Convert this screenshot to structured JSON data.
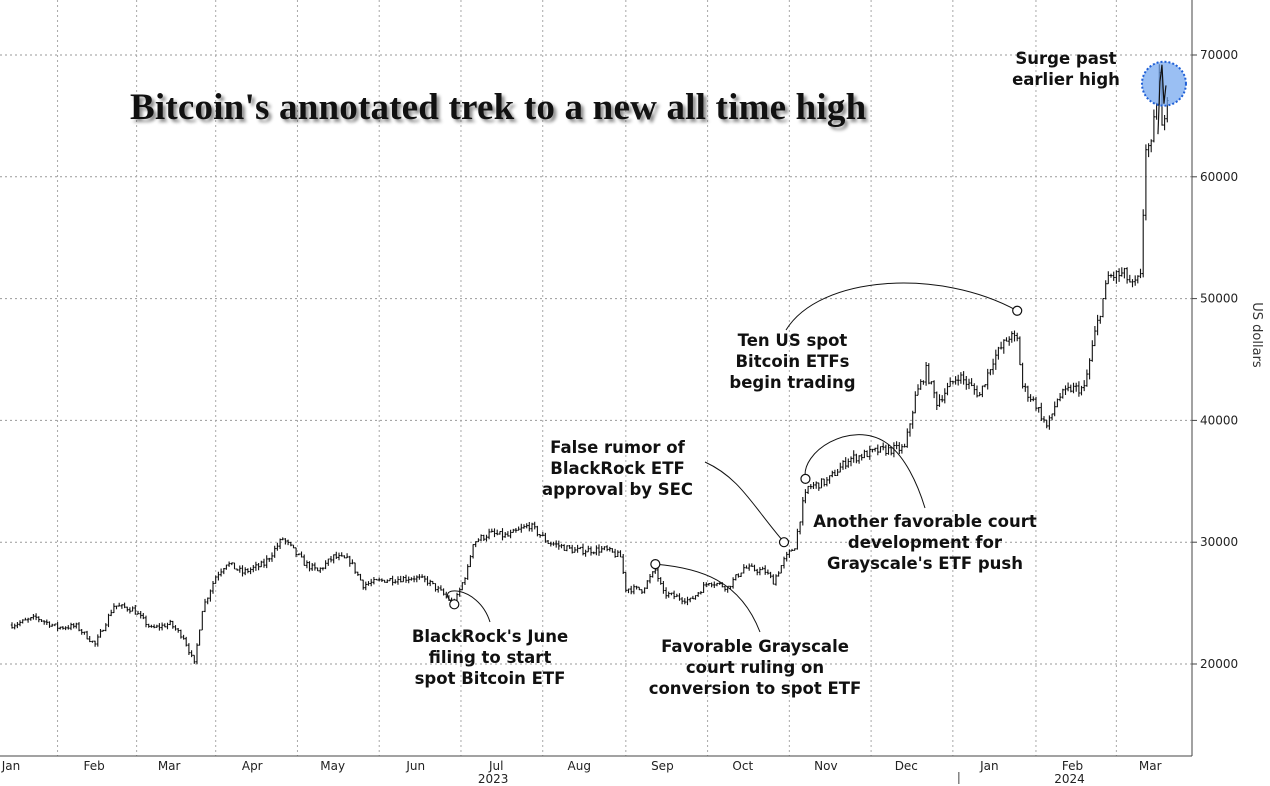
{
  "chart_data": {
    "type": "candlestick-line",
    "title": "Bitcoin's annotated trek to a new all time high",
    "ylabel": "US dollars",
    "ylim": [
      12000,
      75000
    ],
    "y_ticks": [
      20000,
      30000,
      40000,
      50000,
      60000,
      70000
    ],
    "y_tick_labels": [
      "20000",
      "30000",
      "40000",
      "50000",
      "60000",
      "70000"
    ],
    "x_range": [
      "2023-01-01",
      "2024-03-08"
    ],
    "x_month_ticks": [
      {
        "date": "2023-01-01",
        "label": "Jan"
      },
      {
        "date": "2023-02-01",
        "label": "Feb"
      },
      {
        "date": "2023-03-01",
        "label": "Mar"
      },
      {
        "date": "2023-04-01",
        "label": "Apr"
      },
      {
        "date": "2023-05-01",
        "label": "May"
      },
      {
        "date": "2023-06-01",
        "label": "Jun"
      },
      {
        "date": "2023-07-01",
        "label": "Jul"
      },
      {
        "date": "2023-08-01",
        "label": "Aug"
      },
      {
        "date": "2023-09-01",
        "label": "Sep"
      },
      {
        "date": "2023-10-01",
        "label": "Oct"
      },
      {
        "date": "2023-11-01",
        "label": "Nov"
      },
      {
        "date": "2023-12-01",
        "label": "Dec"
      },
      {
        "date": "2024-01-01",
        "label": "Jan"
      },
      {
        "date": "2024-02-01",
        "label": "Feb"
      },
      {
        "date": "2024-03-01",
        "label": "Mar"
      }
    ],
    "year_labels": [
      {
        "date": "2023-07-01",
        "label": "2023"
      },
      {
        "date": "2024-02-01",
        "label": "2024"
      }
    ],
    "grid": true,
    "series": [
      {
        "color": "#111111",
        "values": [
          [
            "2023-01-01",
            23200
          ],
          [
            "2023-01-10",
            23800
          ],
          [
            "2023-01-18",
            23000
          ],
          [
            "2023-01-25",
            23100
          ],
          [
            "2023-02-01",
            21600
          ],
          [
            "2023-02-08",
            24800
          ],
          [
            "2023-02-15",
            24500
          ],
          [
            "2023-02-22",
            22900
          ],
          [
            "2023-03-01",
            23300
          ],
          [
            "2023-03-06",
            22200
          ],
          [
            "2023-03-10",
            20000
          ],
          [
            "2023-03-13",
            24500
          ],
          [
            "2023-03-18",
            27200
          ],
          [
            "2023-03-22",
            28300
          ],
          [
            "2023-03-28",
            27500
          ],
          [
            "2023-04-05",
            28200
          ],
          [
            "2023-04-12",
            30300
          ],
          [
            "2023-04-20",
            28300
          ],
          [
            "2023-04-25",
            27600
          ],
          [
            "2023-05-01",
            28800
          ],
          [
            "2023-05-07",
            28500
          ],
          [
            "2023-05-12",
            26500
          ],
          [
            "2023-05-20",
            26900
          ],
          [
            "2023-05-31",
            27100
          ],
          [
            "2023-06-05",
            26800
          ],
          [
            "2023-06-10",
            25900
          ],
          [
            "2023-06-15",
            24900
          ],
          [
            "2023-06-20",
            27800
          ],
          [
            "2023-06-22",
            30000
          ],
          [
            "2023-06-28",
            30700
          ],
          [
            "2023-07-05",
            30500
          ],
          [
            "2023-07-13",
            31400
          ],
          [
            "2023-07-20",
            30000
          ],
          [
            "2023-07-30",
            29300
          ],
          [
            "2023-08-10",
            29400
          ],
          [
            "2023-08-16",
            28800
          ],
          [
            "2023-08-18",
            26200
          ],
          [
            "2023-08-24",
            26100
          ],
          [
            "2023-08-29",
            27700
          ],
          [
            "2023-09-01",
            25800
          ],
          [
            "2023-09-11",
            25200
          ],
          [
            "2023-09-18",
            26800
          ],
          [
            "2023-09-25",
            26300
          ],
          [
            "2023-10-01",
            27900
          ],
          [
            "2023-10-09",
            27600
          ],
          [
            "2023-10-12",
            26800
          ],
          [
            "2023-10-16",
            28500
          ],
          [
            "2023-10-20",
            29700
          ],
          [
            "2023-10-23",
            33100
          ],
          [
            "2023-10-25",
            34500
          ],
          [
            "2023-11-01",
            35000
          ],
          [
            "2023-11-09",
            36800
          ],
          [
            "2023-11-15",
            37200
          ],
          [
            "2023-11-20",
            37500
          ],
          [
            "2023-11-30",
            37700
          ],
          [
            "2023-12-04",
            41900
          ],
          [
            "2023-12-08",
            44100
          ],
          [
            "2023-12-12",
            41500
          ],
          [
            "2023-12-20",
            43700
          ],
          [
            "2023-12-28",
            42100
          ],
          [
            "2024-01-02",
            45000
          ],
          [
            "2024-01-08",
            46900
          ],
          [
            "2024-01-11",
            46600
          ],
          [
            "2024-01-13",
            42800
          ],
          [
            "2024-01-18",
            41300
          ],
          [
            "2024-01-22",
            39500
          ],
          [
            "2024-01-23",
            39900
          ],
          [
            "2024-01-26",
            41800
          ],
          [
            "2024-01-31",
            42600
          ],
          [
            "2024-02-05",
            42600
          ],
          [
            "2024-02-09",
            47100
          ],
          [
            "2024-02-14",
            51800
          ],
          [
            "2024-02-20",
            52000
          ],
          [
            "2024-02-23",
            51000
          ],
          [
            "2024-02-26",
            51700
          ],
          [
            "2024-02-27",
            57000
          ],
          [
            "2024-02-28",
            62500
          ],
          [
            "2024-03-01",
            62400
          ],
          [
            "2024-03-04",
            68300
          ],
          [
            "2024-03-05",
            63800
          ],
          [
            "2024-03-07",
            66900
          ]
        ]
      }
    ],
    "annotations": [
      {
        "id": "blackrock-filing",
        "date": "2023-06-15",
        "value": 24900,
        "text": "BlackRock's June\nfiling to start\nspot Bitcoin ETF"
      },
      {
        "id": "grayscale-ruling",
        "date": "2023-08-29",
        "value": 28200,
        "text": "Favorable Grayscale\ncourt ruling on\nconversion to spot ETF"
      },
      {
        "id": "false-rumor",
        "date": "2023-10-16",
        "value": 30000,
        "text": "False rumor of\nBlackRock ETF\napproval by SEC"
      },
      {
        "id": "grayscale-court",
        "date": "2023-10-24",
        "value": 35200,
        "text": "Another favorable court\ndevelopment for\nGrayscale's ETF push"
      },
      {
        "id": "etf-trading",
        "date": "2024-01-11",
        "value": 49000,
        "text": "Ten US spot\nBitcoin ETFs\nbegin trading"
      },
      {
        "id": "surge",
        "date": "2024-03-05",
        "value": 68300,
        "text": "Surge past\nearlier high"
      }
    ]
  }
}
